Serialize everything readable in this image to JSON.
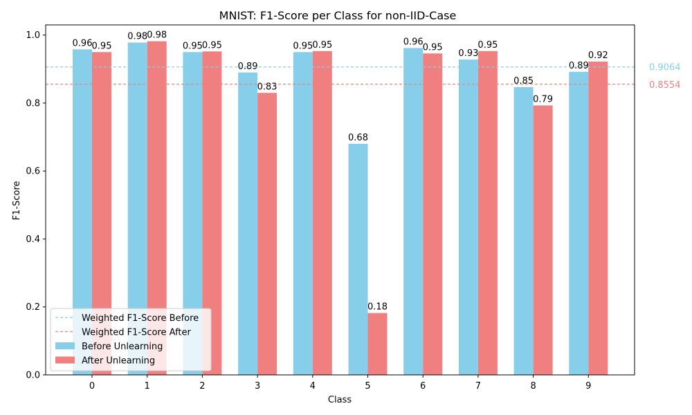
{
  "chart_data": {
    "type": "bar",
    "title": "MNIST: F1-Score per Class for non-IID-Case",
    "xlabel": "Class",
    "ylabel": "F1-Score",
    "ylim": [
      0,
      1.03
    ],
    "yticks": [
      "0.0",
      "0.2",
      "0.4",
      "0.6",
      "0.8",
      "1.0"
    ],
    "categories": [
      "0",
      "1",
      "2",
      "3",
      "4",
      "5",
      "6",
      "7",
      "8",
      "9"
    ],
    "series": [
      {
        "name": "Before Unlearning",
        "color": "#87ceeb",
        "values": [
          0.958,
          0.978,
          0.95,
          0.89,
          0.95,
          0.68,
          0.962,
          0.928,
          0.847,
          0.892
        ],
        "labels": [
          "0.96",
          "0.98",
          "0.95",
          "0.89",
          "0.95",
          "0.68",
          "0.96",
          "0.93",
          "0.85",
          "0.89"
        ]
      },
      {
        "name": "After Unlearning",
        "color": "#f08080",
        "values": [
          0.95,
          0.982,
          0.952,
          0.83,
          0.953,
          0.182,
          0.946,
          0.953,
          0.793,
          0.922
        ],
        "labels": [
          "0.95",
          "0.98",
          "0.95",
          "0.83",
          "0.95",
          "0.18",
          "0.95",
          "0.95",
          "0.79",
          "0.92"
        ]
      }
    ],
    "reference_lines": [
      {
        "name": "Weighted F1-Score Before",
        "value": 0.9064,
        "label": "0.9064",
        "color": "#87ceeb"
      },
      {
        "name": "Weighted F1-Score After",
        "value": 0.8554,
        "label": "0.8554",
        "color": "#f08080"
      }
    ],
    "legend_position": "lower-left",
    "grid": false
  }
}
